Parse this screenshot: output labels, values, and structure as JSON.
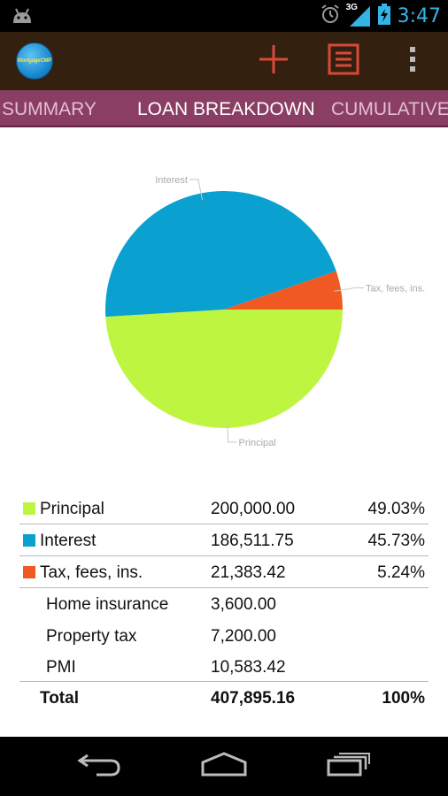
{
  "status_bar": {
    "time": "3:47",
    "network": "3G",
    "icons": [
      "android-icon",
      "alarm-icon",
      "signal-icon",
      "battery-charging-icon"
    ]
  },
  "action_bar": {
    "app_icon_text": "MortgageCMP",
    "actions": [
      "add-icon",
      "list-icon",
      "overflow-menu-icon"
    ]
  },
  "tabs": [
    {
      "label": "SUMMARY",
      "active": false
    },
    {
      "label": "LOAN BREAKDOWN",
      "active": true
    },
    {
      "label": "CUMULATIVE",
      "active": false
    }
  ],
  "colors": {
    "principal": "#bef540",
    "interest": "#0aa1d0",
    "tax": "#f05a22"
  },
  "chart_data": {
    "type": "pie",
    "slices": [
      {
        "label": "Principal",
        "value": 200000.0,
        "percent": 49.03,
        "color": "#bef540"
      },
      {
        "label": "Interest",
        "value": 186511.75,
        "percent": 45.73,
        "color": "#0aa1d0"
      },
      {
        "label": "Tax, fees, ins.",
        "value": 21383.42,
        "percent": 5.24,
        "color": "#f05a22"
      }
    ]
  },
  "breakdown": {
    "rows": [
      {
        "label": "Principal",
        "amount": "200,000.00",
        "percent": "49.03%",
        "color": "#bef540"
      },
      {
        "label": "Interest",
        "amount": "186,511.75",
        "percent": "45.73%",
        "color": "#0aa1d0"
      },
      {
        "label": "Tax, fees, ins.",
        "amount": "21,383.42",
        "percent": "5.24%",
        "color": "#f05a22"
      }
    ],
    "sub_rows": [
      {
        "label": "Home insurance",
        "amount": "3,600.00"
      },
      {
        "label": "Property tax",
        "amount": "7,200.00"
      },
      {
        "label": "PMI",
        "amount": "10,583.42"
      }
    ],
    "total": {
      "label": "Total",
      "amount": "407,895.16",
      "percent": "100%"
    }
  },
  "nav_bar": [
    "back-icon",
    "home-icon",
    "recent-apps-icon"
  ]
}
